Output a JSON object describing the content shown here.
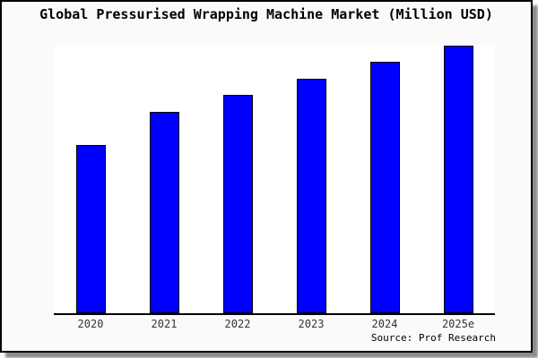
{
  "chart_data": {
    "type": "bar",
    "title": "Global Pressurised Wrapping Machine Market (Million USD)",
    "categories": [
      "2020",
      "2021",
      "2022",
      "2023",
      "2024",
      "2025e"
    ],
    "values": [
      100,
      119.7,
      129.8,
      139.4,
      149.5,
      159.0
    ],
    "values_note": "No y-axis scale is shown in the chart; values are relative bar heights indexed to 2020 = 100.",
    "xlabel": "",
    "ylabel": "",
    "y_axis_visible": false,
    "grid": false,
    "legend_position": "none",
    "source_credit": "Source: Prof Research",
    "colors": {
      "bar_fill": "#0000ff",
      "bar_border": "#000000",
      "card_background": "#fafafa",
      "plot_background": "#ffffff",
      "axis_line": "#000000",
      "title_text": "#000000",
      "tick_text": "#333333",
      "border": "#000000",
      "shadow": "#8c8c8c"
    }
  }
}
